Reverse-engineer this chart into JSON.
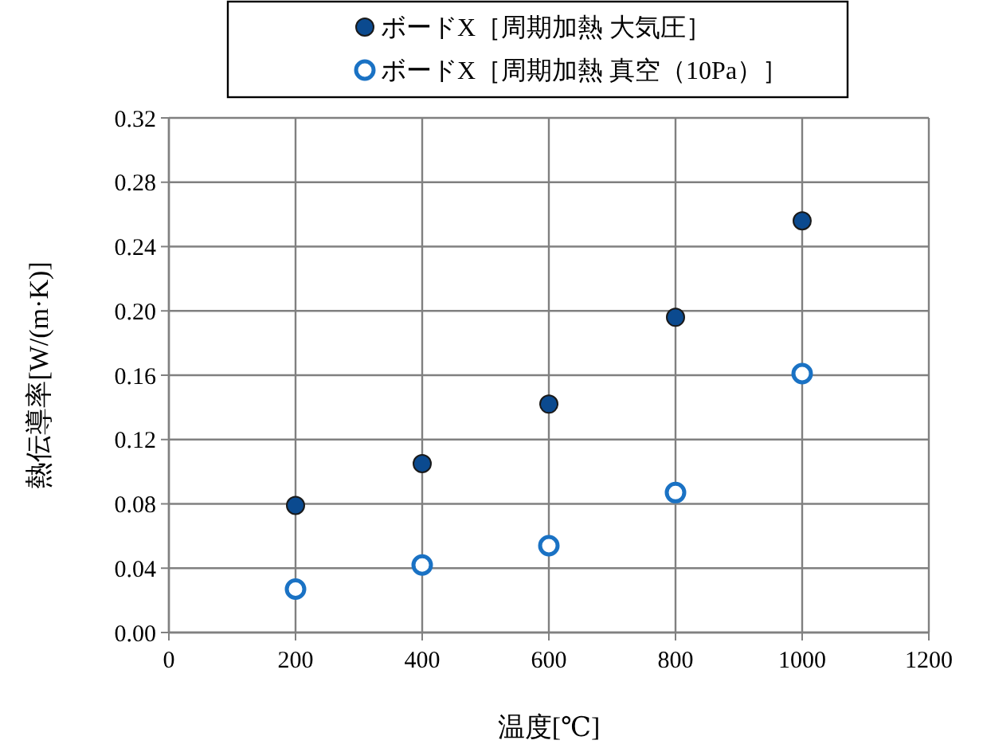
{
  "chart_data": {
    "type": "scatter",
    "xlabel": "温度[℃]",
    "ylabel": "熱伝導率[W/(m·K)]",
    "xlim": [
      0,
      1200
    ],
    "xticks": [
      0,
      200,
      400,
      600,
      800,
      1000,
      1200
    ],
    "ylim": [
      0,
      0.32
    ],
    "yticks": [
      {
        "value": 0,
        "label": "0.00"
      },
      {
        "value": 0.04,
        "label": "0.04"
      },
      {
        "value": 0.08,
        "label": "0.08"
      },
      {
        "value": 0.12,
        "label": "0.12"
      },
      {
        "value": 0.16,
        "label": "0.16"
      },
      {
        "value": 0.2,
        "label": "0.20"
      },
      {
        "value": 0.24,
        "label": "0.24"
      },
      {
        "value": 0.28,
        "label": "0.28"
      },
      {
        "value": 0.32,
        "label": "0.32"
      }
    ],
    "grid": true,
    "legend": "top",
    "marker": "circle",
    "x": [
      200,
      400,
      600,
      800,
      1000
    ],
    "series": [
      {
        "name": "ボードX［周期加熱  大気圧］",
        "color": "#0b4a8f",
        "values": [
          0.079,
          0.105,
          0.142,
          0.196,
          0.256
        ]
      },
      {
        "name": "ボードX［周期加熱  真空（10Pa）］",
        "color": "#1a72c4",
        "values": [
          0.027,
          0.042,
          0.054,
          0.087,
          0.161
        ]
      }
    ]
  }
}
